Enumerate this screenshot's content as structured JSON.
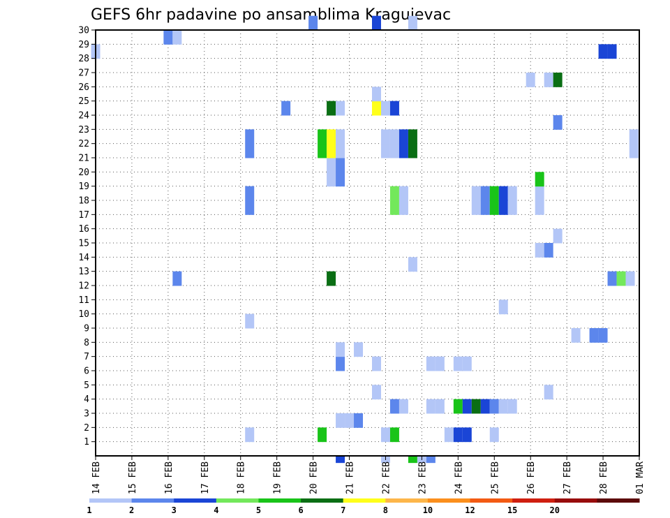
{
  "chart_data": {
    "type": "heatmap",
    "title": "GEFS 6hr padavine po ansamblima Kragujevac",
    "x_tick_labels": [
      "14 FEB",
      "15 FEB",
      "16 FEB",
      "17 FEB",
      "18 FEB",
      "19 FEB",
      "20 FEB",
      "21 FEB",
      "22 FEB",
      "23 FEB",
      "24 FEB",
      "25 FEB",
      "26 FEB",
      "27 FEB",
      "28 FEB",
      "01 MAR"
    ],
    "x_range_days": [
      0,
      15
    ],
    "y_tick_labels": [
      1,
      2,
      3,
      4,
      5,
      6,
      7,
      8,
      9,
      10,
      11,
      12,
      13,
      14,
      15,
      16,
      17,
      18,
      19,
      20,
      21,
      22,
      23,
      24,
      25,
      26,
      27,
      28,
      29,
      30
    ],
    "y_range": [
      0,
      30
    ],
    "grid": true,
    "legend_placement": "bottom",
    "legend_levels": [
      1,
      2,
      3,
      4,
      5,
      6,
      7,
      8,
      10,
      12,
      15,
      20
    ],
    "legend_colors": [
      "#b3c6f7",
      "#5c86ec",
      "#1a45d6",
      "#73e85b",
      "#19c419",
      "#0a6e14",
      "#ffff1a",
      "#fdb64a",
      "#fb8f1d",
      "#f35a13",
      "#cf1f10",
      "#980c0c",
      "#5c0a0a"
    ],
    "cells": [
      {
        "member": 1,
        "day": 4.25,
        "bin": 0
      },
      {
        "member": 1,
        "day": 6.25,
        "bin": 4
      },
      {
        "member": 1,
        "day": 8.0,
        "bin": 0
      },
      {
        "member": 1,
        "day": 8.25,
        "bin": 4
      },
      {
        "member": 1,
        "day": 9.75,
        "bin": 0
      },
      {
        "member": 1,
        "day": 10.0,
        "bin": 2
      },
      {
        "member": 1,
        "day": 10.25,
        "bin": 2
      },
      {
        "member": 1,
        "day": 11.0,
        "bin": 0
      },
      {
        "member": 2,
        "day": 6.75,
        "bin": 0
      },
      {
        "member": 2,
        "day": 7.0,
        "bin": 0
      },
      {
        "member": 2,
        "day": 7.25,
        "bin": 1
      },
      {
        "member": 3,
        "day": 8.25,
        "bin": 1
      },
      {
        "member": 3,
        "day": 8.5,
        "bin": 0
      },
      {
        "member": 3,
        "day": 9.25,
        "bin": 0
      },
      {
        "member": 3,
        "day": 9.5,
        "bin": 0
      },
      {
        "member": 3,
        "day": 10.0,
        "bin": 4
      },
      {
        "member": 3,
        "day": 10.25,
        "bin": 2
      },
      {
        "member": 3,
        "day": 10.5,
        "bin": 5
      },
      {
        "member": 3,
        "day": 10.75,
        "bin": 2
      },
      {
        "member": 3,
        "day": 11.0,
        "bin": 1
      },
      {
        "member": 3,
        "day": 11.25,
        "bin": 0
      },
      {
        "member": 3,
        "day": 11.5,
        "bin": 0
      },
      {
        "member": 4,
        "day": 7.75,
        "bin": 0
      },
      {
        "member": 4,
        "day": 12.5,
        "bin": 0
      },
      {
        "member": 6,
        "day": 6.75,
        "bin": 1
      },
      {
        "member": 6,
        "day": 7.75,
        "bin": 0
      },
      {
        "member": 6,
        "day": 9.25,
        "bin": 0
      },
      {
        "member": 6,
        "day": 9.5,
        "bin": 0
      },
      {
        "member": 6,
        "day": 10.0,
        "bin": 0
      },
      {
        "member": 6,
        "day": 10.25,
        "bin": 0
      },
      {
        "member": 7,
        "day": 6.75,
        "bin": 0
      },
      {
        "member": 7,
        "day": 7.25,
        "bin": 0
      },
      {
        "member": 8,
        "day": 13.25,
        "bin": 0
      },
      {
        "member": 8,
        "day": 13.75,
        "bin": 1
      },
      {
        "member": 8,
        "day": 14.0,
        "bin": 1
      },
      {
        "member": 9,
        "day": 4.25,
        "bin": 0
      },
      {
        "member": 10,
        "day": 11.25,
        "bin": 0
      },
      {
        "member": 12,
        "day": 2.25,
        "bin": 1
      },
      {
        "member": 12,
        "day": 6.5,
        "bin": 5
      },
      {
        "member": 12,
        "day": 14.25,
        "bin": 1
      },
      {
        "member": 12,
        "day": 14.5,
        "bin": 3
      },
      {
        "member": 12,
        "day": 14.75,
        "bin": 0
      },
      {
        "member": 13,
        "day": 8.75,
        "bin": 0
      },
      {
        "member": 14,
        "day": 12.25,
        "bin": 0
      },
      {
        "member": 14,
        "day": 12.5,
        "bin": 1
      },
      {
        "member": 15,
        "day": 12.75,
        "bin": 0
      },
      {
        "member": 17,
        "day": 4.25,
        "bin": 1
      },
      {
        "member": 17,
        "day": 8.25,
        "bin": 3
      },
      {
        "member": 17,
        "day": 8.5,
        "bin": 0
      },
      {
        "member": 17,
        "day": 10.5,
        "bin": 0
      },
      {
        "member": 17,
        "day": 10.75,
        "bin": 1
      },
      {
        "member": 17,
        "day": 11.0,
        "bin": 4
      },
      {
        "member": 17,
        "day": 11.25,
        "bin": 2
      },
      {
        "member": 17,
        "day": 11.5,
        "bin": 0
      },
      {
        "member": 17,
        "day": 12.25,
        "bin": 0
      },
      {
        "member": 18,
        "day": 4.25,
        "bin": 1
      },
      {
        "member": 18,
        "day": 8.25,
        "bin": 3
      },
      {
        "member": 18,
        "day": 8.5,
        "bin": 0
      },
      {
        "member": 18,
        "day": 10.5,
        "bin": 0
      },
      {
        "member": 18,
        "day": 10.75,
        "bin": 1
      },
      {
        "member": 18,
        "day": 11.0,
        "bin": 4
      },
      {
        "member": 18,
        "day": 11.25,
        "bin": 2
      },
      {
        "member": 18,
        "day": 11.5,
        "bin": 0
      },
      {
        "member": 18,
        "day": 12.25,
        "bin": 0
      },
      {
        "member": 19,
        "day": 6.5,
        "bin": 0
      },
      {
        "member": 19,
        "day": 6.75,
        "bin": 1
      },
      {
        "member": 19,
        "day": 12.25,
        "bin": 4
      },
      {
        "member": 20,
        "day": 6.5,
        "bin": 0
      },
      {
        "member": 20,
        "day": 6.75,
        "bin": 1
      },
      {
        "member": 21,
        "day": 4.25,
        "bin": 1
      },
      {
        "member": 21,
        "day": 6.25,
        "bin": 4
      },
      {
        "member": 21,
        "day": 6.5,
        "bin": 6
      },
      {
        "member": 21,
        "day": 6.75,
        "bin": 0
      },
      {
        "member": 21,
        "day": 8.0,
        "bin": 0
      },
      {
        "member": 21,
        "day": 8.25,
        "bin": 0
      },
      {
        "member": 21,
        "day": 8.5,
        "bin": 2
      },
      {
        "member": 21,
        "day": 8.75,
        "bin": 5
      },
      {
        "member": 21,
        "day": 14.85,
        "bin": 0
      },
      {
        "member": 22,
        "day": 4.25,
        "bin": 1
      },
      {
        "member": 22,
        "day": 6.25,
        "bin": 4
      },
      {
        "member": 22,
        "day": 6.5,
        "bin": 6
      },
      {
        "member": 22,
        "day": 6.75,
        "bin": 0
      },
      {
        "member": 22,
        "day": 8.0,
        "bin": 0
      },
      {
        "member": 22,
        "day": 8.25,
        "bin": 0
      },
      {
        "member": 22,
        "day": 8.5,
        "bin": 2
      },
      {
        "member": 22,
        "day": 8.75,
        "bin": 5
      },
      {
        "member": 22,
        "day": 14.85,
        "bin": 0
      },
      {
        "member": 23,
        "day": 12.75,
        "bin": 1
      },
      {
        "member": 24,
        "day": 5.25,
        "bin": 1
      },
      {
        "member": 24,
        "day": 6.5,
        "bin": 5
      },
      {
        "member": 24,
        "day": 6.75,
        "bin": 0
      },
      {
        "member": 24,
        "day": 7.75,
        "bin": 6
      },
      {
        "member": 24,
        "day": 8.0,
        "bin": 0
      },
      {
        "member": 24,
        "day": 8.25,
        "bin": 2
      },
      {
        "member": 25,
        "day": 7.75,
        "bin": 0
      },
      {
        "member": 26,
        "day": 12.0,
        "bin": 0
      },
      {
        "member": 26,
        "day": 12.5,
        "bin": 0
      },
      {
        "member": 26,
        "day": 12.75,
        "bin": 5
      },
      {
        "member": 28,
        "day": 0.0,
        "bin": 0
      },
      {
        "member": 28,
        "day": 14.0,
        "bin": 2
      },
      {
        "member": 28,
        "day": 14.25,
        "bin": 2
      },
      {
        "member": 29,
        "day": 2.0,
        "bin": 1
      },
      {
        "member": 29,
        "day": 2.25,
        "bin": 0
      },
      {
        "member": 30,
        "day": 6.0,
        "bin": 1
      },
      {
        "member": 30,
        "day": 7.75,
        "bin": 2
      },
      {
        "member": 30,
        "day": 8.75,
        "bin": 0
      }
    ],
    "edge_cells_top": [
      {
        "day": 6.75,
        "bin": 2
      },
      {
        "day": 8.0,
        "bin": 0
      },
      {
        "day": 8.75,
        "bin": 4
      },
      {
        "day": 9.0,
        "bin": 0
      },
      {
        "day": 9.25,
        "bin": 1
      }
    ]
  }
}
